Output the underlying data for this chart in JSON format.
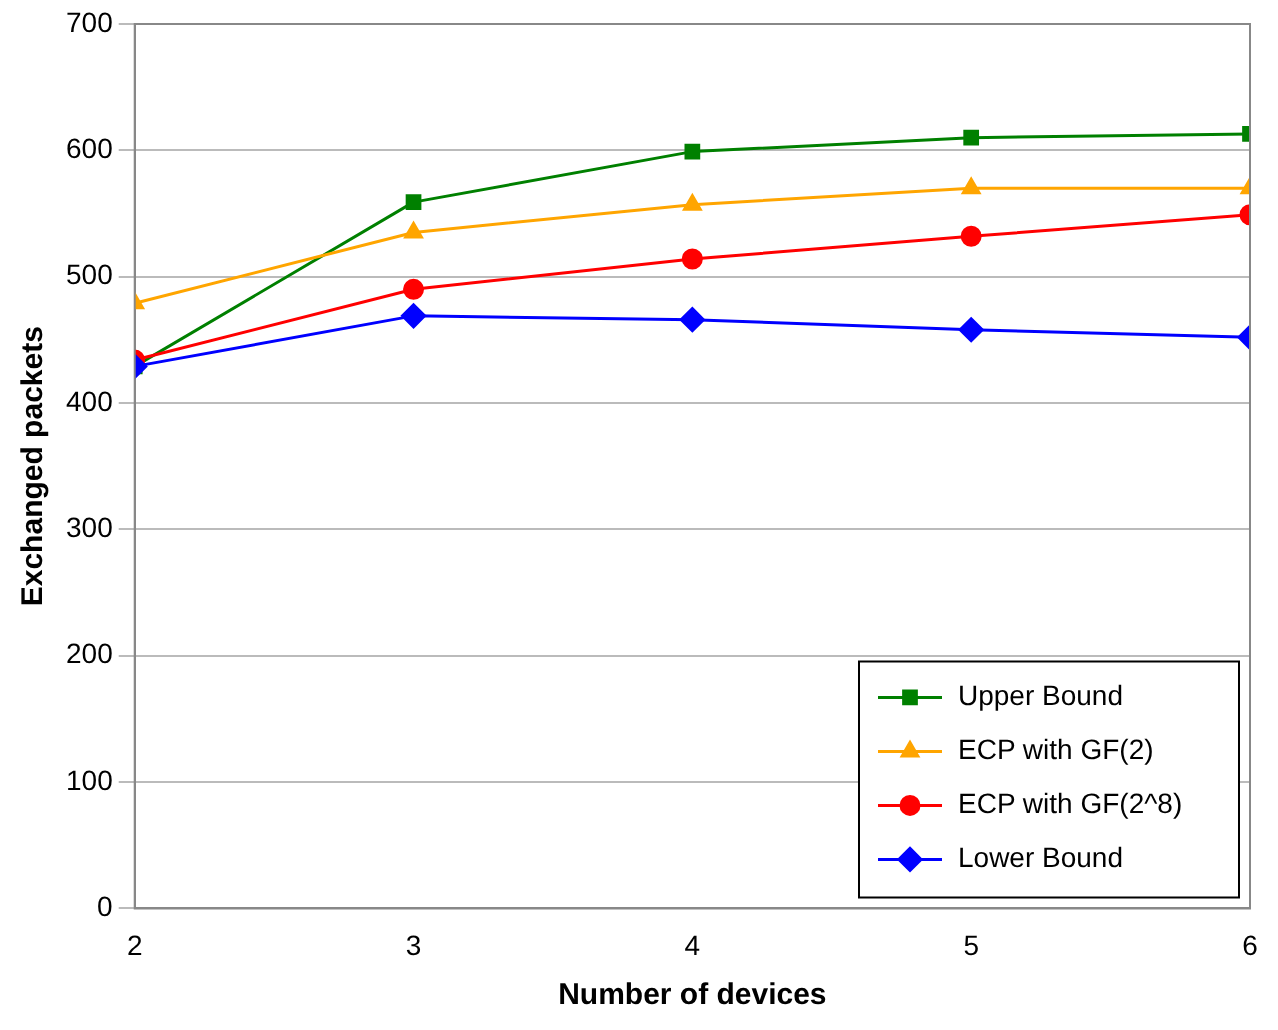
{
  "chart_data": {
    "type": "line",
    "xlabel": "Number of devices",
    "ylabel": "Exchanged packets",
    "x": [
      2,
      3,
      4,
      5,
      6
    ],
    "series": [
      {
        "name": "Upper Bound",
        "color": "#008000",
        "marker": "square",
        "values": [
          429,
          559,
          599,
          610,
          613
        ]
      },
      {
        "name": "ECP with GF(2)",
        "color": "#ffa500",
        "marker": "triangle",
        "values": [
          479,
          535,
          557,
          570,
          570
        ]
      },
      {
        "name": "ECP with GF(2^8)",
        "color": "#ff0000",
        "marker": "circle",
        "values": [
          434,
          490,
          514,
          532,
          549
        ]
      },
      {
        "name": "Lower Bound",
        "color": "#0000ff",
        "marker": "diamond",
        "values": [
          429,
          469,
          466,
          458,
          452
        ]
      }
    ],
    "xlim": [
      2,
      6
    ],
    "xticks": [
      2,
      3,
      4,
      5,
      6
    ],
    "ylim": [
      0,
      700
    ],
    "yticks": [
      0,
      100,
      200,
      300,
      400,
      500,
      600,
      700
    ],
    "grid": "y",
    "legend": "bottom right",
    "line_style": "solid"
  }
}
